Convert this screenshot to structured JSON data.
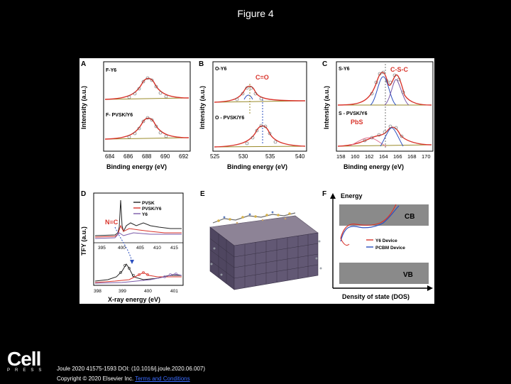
{
  "slide": {
    "title": "Figure 4"
  },
  "figure": {
    "panels": {
      "A": {
        "letter": "A",
        "top_label": "F-Y6",
        "bottom_label": "F- PVSK/Y6",
        "ylabel": "Intensity (a.u.)",
        "xlabel": "Binding energy (eV)",
        "ticks": [
          "684",
          "686",
          "688",
          "690",
          "692"
        ]
      },
      "B": {
        "letter": "B",
        "top_label": "O-Y6",
        "peak_label": "C=O",
        "bottom_label": "O - PVSK/Y6",
        "ylabel": "Intensity (a.u.)",
        "xlabel": "Binding energy (eV)",
        "ticks": [
          "525",
          "530",
          "535",
          "540"
        ]
      },
      "C": {
        "letter": "C",
        "top_label": "S-Y6",
        "peak_label": "C-S-C",
        "bottom_label": "S - PVSK/Y6",
        "pb_label": "PbS",
        "ylabel": "Intensity (a.u.)",
        "xlabel": "Binding energy (eV)",
        "ticks": [
          "158",
          "160",
          "162",
          "164",
          "166",
          "168",
          "170"
        ]
      },
      "D": {
        "letter": "D",
        "legend": [
          "PVSK",
          "PVSK/Y6",
          "Y6"
        ],
        "nc_label": "N≡C",
        "ylabel": "TFY (a.u.)",
        "xlabel": "X-ray energy (eV)",
        "upper_ticks": [
          "395",
          "400",
          "405",
          "410",
          "415"
        ],
        "lower_ticks": [
          "398",
          "399",
          "400",
          "401"
        ]
      },
      "E": {
        "letter": "E"
      },
      "F": {
        "letter": "F",
        "energy_label": "Energy",
        "cb_label": "CB",
        "vb_label": "VB",
        "legend": [
          "Y6 Device",
          "PCBM Device"
        ],
        "xlabel": "Density of state (DOS)"
      }
    },
    "colors": {
      "fit_red": "#d9342b",
      "blue": "#2b4fbf",
      "olive": "#9a8a2a",
      "purple": "#7a5aa8",
      "pink": "#e07090",
      "dark": "#222222"
    }
  },
  "footer": {
    "logo": "Cell",
    "logo_sub": "PRESS",
    "citation": "Joule 2020 41575-1593 DOI: (10.1016/j.joule.2020.06.007)",
    "copyright_prefix": "Copyright © 2020 Elsevier Inc.",
    "terms": "Terms and Conditions"
  }
}
